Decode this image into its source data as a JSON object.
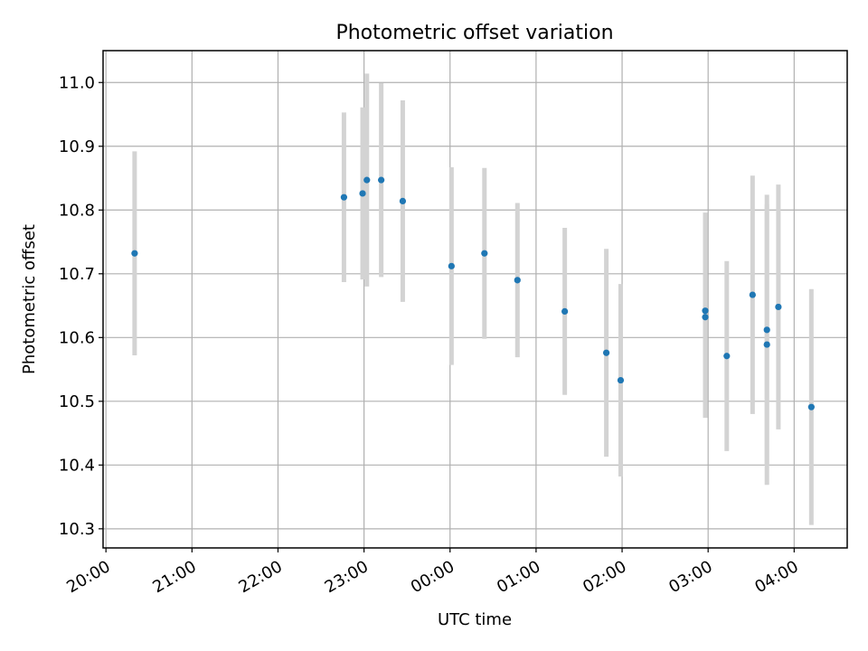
{
  "chart_data": {
    "type": "scatter",
    "title": "Photometric offset variation",
    "xlabel": "UTC time",
    "ylabel": "Photometric offset",
    "xlim": [
      "19:58",
      "04:37"
    ],
    "ylim": [
      10.27,
      11.05
    ],
    "xticks": [
      "20:00",
      "21:00",
      "22:00",
      "23:00",
      "00:00",
      "01:00",
      "02:00",
      "03:00",
      "04:00"
    ],
    "yticks": [
      "10.3",
      "10.4",
      "10.5",
      "10.6",
      "10.7",
      "10.8",
      "10.9",
      "11.0"
    ],
    "grid": true,
    "colors": {
      "marker": "#1f77b4",
      "errorbar": "#d3d3d3",
      "grid": "#b0b0b0"
    },
    "points": [
      {
        "t": "20:20",
        "y": 10.732,
        "err": 0.16
      },
      {
        "t": "22:46",
        "y": 10.82,
        "err": 0.133
      },
      {
        "t": "22:59",
        "y": 10.826,
        "err": 0.135
      },
      {
        "t": "23:02",
        "y": 10.847,
        "err": 0.167
      },
      {
        "t": "23:12",
        "y": 10.847,
        "err": 0.152
      },
      {
        "t": "23:27",
        "y": 10.814,
        "err": 0.158
      },
      {
        "t": "00:01",
        "y": 10.712,
        "err": 0.155
      },
      {
        "t": "00:24",
        "y": 10.732,
        "err": 0.134
      },
      {
        "t": "00:47",
        "y": 10.69,
        "err": 0.121
      },
      {
        "t": "01:20",
        "y": 10.641,
        "err": 0.131
      },
      {
        "t": "01:49",
        "y": 10.576,
        "err": 0.163
      },
      {
        "t": "01:59",
        "y": 10.533,
        "err": 0.151
      },
      {
        "t": "02:58",
        "y": 10.642,
        "err": 0.154
      },
      {
        "t": "02:58",
        "y": 10.632,
        "err": 0.158
      },
      {
        "t": "03:13",
        "y": 10.571,
        "err": 0.149
      },
      {
        "t": "03:31",
        "y": 10.667,
        "err": 0.187
      },
      {
        "t": "03:41",
        "y": 10.612,
        "err": 0.212
      },
      {
        "t": "03:41",
        "y": 10.589,
        "err": 0.22
      },
      {
        "t": "03:49",
        "y": 10.648,
        "err": 0.192
      },
      {
        "t": "04:12",
        "y": 10.491,
        "err": 0.185
      }
    ]
  }
}
